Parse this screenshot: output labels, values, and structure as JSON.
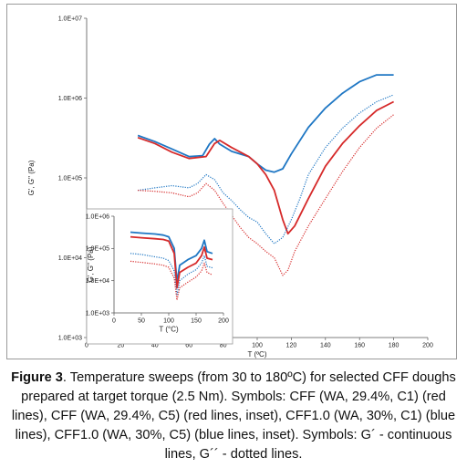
{
  "chart_data": [
    {
      "id": "main",
      "type": "line",
      "y_scale": "log",
      "xlabel": "T (ºC)",
      "ylabel": "G', G'' (Pa)",
      "xlim": [
        0,
        200
      ],
      "ylim": [
        1000,
        10000000
      ],
      "x_ticks": [
        "0",
        "20",
        "40",
        "60",
        "80",
        "100",
        "120",
        "140",
        "160",
        "180",
        "200"
      ],
      "y_ticks": [
        "1.0E+03",
        "1.0E+04",
        "1.0E+05",
        "1.0E+06",
        "1.0E+07"
      ],
      "grid": false,
      "series": [
        {
          "color": "#1f77c4",
          "style": "solid",
          "points": [
            [
              30,
              340000
            ],
            [
              40,
              285000
            ],
            [
              50,
              230000
            ],
            [
              60,
              185000
            ],
            [
              68,
              190000
            ],
            [
              72,
              265000
            ],
            [
              75,
              310000
            ],
            [
              78,
              265000
            ],
            [
              85,
              215000
            ],
            [
              95,
              185000
            ],
            [
              100,
              150000
            ],
            [
              105,
              125000
            ],
            [
              110,
              118000
            ],
            [
              115,
              130000
            ],
            [
              120,
              200000
            ],
            [
              130,
              430000
            ],
            [
              140,
              750000
            ],
            [
              150,
              1150000
            ],
            [
              160,
              1600000
            ],
            [
              170,
              1950000
            ],
            [
              180,
              1950000
            ]
          ]
        },
        {
          "color": "#d62a2a",
          "style": "solid",
          "points": [
            [
              30,
              320000
            ],
            [
              40,
              270000
            ],
            [
              50,
              210000
            ],
            [
              60,
              175000
            ],
            [
              70,
              185000
            ],
            [
              75,
              270000
            ],
            [
              78,
              295000
            ],
            [
              85,
              240000
            ],
            [
              95,
              185000
            ],
            [
              100,
              150000
            ],
            [
              105,
              110000
            ],
            [
              110,
              70000
            ],
            [
              115,
              30000
            ],
            [
              118,
              20000
            ],
            [
              122,
              25000
            ],
            [
              130,
              55000
            ],
            [
              140,
              140000
            ],
            [
              150,
              270000
            ],
            [
              160,
              450000
            ],
            [
              170,
              700000
            ],
            [
              180,
              900000
            ]
          ]
        },
        {
          "color": "#1f77c4",
          "style": "dotted",
          "points": [
            [
              30,
              70000
            ],
            [
              40,
              75000
            ],
            [
              50,
              80000
            ],
            [
              60,
              75000
            ],
            [
              65,
              85000
            ],
            [
              70,
              110000
            ],
            [
              75,
              95000
            ],
            [
              80,
              65000
            ],
            [
              85,
              52000
            ],
            [
              90,
              40000
            ],
            [
              95,
              32000
            ],
            [
              100,
              28000
            ],
            [
              105,
              20000
            ],
            [
              110,
              15000
            ],
            [
              115,
              18000
            ],
            [
              120,
              30000
            ],
            [
              125,
              55000
            ],
            [
              130,
              110000
            ],
            [
              140,
              240000
            ],
            [
              150,
              420000
            ],
            [
              160,
              650000
            ],
            [
              170,
              900000
            ],
            [
              180,
              1100000
            ]
          ]
        },
        {
          "color": "#d62a2a",
          "style": "dotted",
          "points": [
            [
              30,
              70000
            ],
            [
              40,
              68000
            ],
            [
              50,
              65000
            ],
            [
              60,
              58000
            ],
            [
              65,
              65000
            ],
            [
              70,
              85000
            ],
            [
              75,
              70000
            ],
            [
              80,
              48000
            ],
            [
              85,
              34000
            ],
            [
              90,
              24000
            ],
            [
              95,
              18000
            ],
            [
              100,
              15000
            ],
            [
              105,
              12000
            ],
            [
              110,
              10000
            ],
            [
              115,
              6000
            ],
            [
              118,
              7000
            ],
            [
              122,
              12000
            ],
            [
              130,
              25000
            ],
            [
              140,
              55000
            ],
            [
              150,
              120000
            ],
            [
              160,
              240000
            ],
            [
              170,
              420000
            ],
            [
              180,
              620000
            ]
          ]
        }
      ]
    },
    {
      "id": "inset",
      "type": "line",
      "y_scale": "log",
      "xlabel": "T (°C)",
      "ylabel": "G', G'' (Pa)",
      "xlim": [
        0,
        200
      ],
      "ylim": [
        1000,
        1000000
      ],
      "x_ticks": [
        "0",
        "50",
        "100",
        "150",
        "200"
      ],
      "y_ticks": [
        "1.0E+03",
        "1.0E+04",
        "1.0E+05",
        "1.0E+06"
      ],
      "grid": false,
      "series": [
        {
          "color": "#1f77c4",
          "style": "solid",
          "points": [
            [
              30,
              320000
            ],
            [
              50,
              300000
            ],
            [
              75,
              280000
            ],
            [
              90,
              260000
            ],
            [
              100,
              230000
            ],
            [
              110,
              100000
            ],
            [
              115,
              9000
            ],
            [
              120,
              30000
            ],
            [
              135,
              45000
            ],
            [
              150,
              60000
            ],
            [
              160,
              100000
            ],
            [
              165,
              180000
            ],
            [
              170,
              80000
            ],
            [
              180,
              70000
            ]
          ]
        },
        {
          "color": "#d62a2a",
          "style": "solid",
          "points": [
            [
              30,
              230000
            ],
            [
              50,
              215000
            ],
            [
              75,
              200000
            ],
            [
              90,
              190000
            ],
            [
              100,
              170000
            ],
            [
              110,
              70000
            ],
            [
              115,
              6000
            ],
            [
              120,
              18000
            ],
            [
              135,
              26000
            ],
            [
              150,
              35000
            ],
            [
              160,
              60000
            ],
            [
              165,
              110000
            ],
            [
              170,
              50000
            ],
            [
              180,
              45000
            ]
          ]
        },
        {
          "color": "#1f77c4",
          "style": "dotted",
          "points": [
            [
              30,
              70000
            ],
            [
              50,
              65000
            ],
            [
              75,
              55000
            ],
            [
              90,
              50000
            ],
            [
              100,
              42000
            ],
            [
              110,
              20000
            ],
            [
              115,
              3500
            ],
            [
              120,
              10000
            ],
            [
              135,
              16000
            ],
            [
              150,
              22000
            ],
            [
              160,
              35000
            ],
            [
              165,
              60000
            ],
            [
              170,
              28000
            ],
            [
              180,
              25000
            ]
          ]
        },
        {
          "color": "#d62a2a",
          "style": "dotted",
          "points": [
            [
              30,
              40000
            ],
            [
              50,
              37000
            ],
            [
              75,
              33000
            ],
            [
              90,
              30000
            ],
            [
              100,
              26000
            ],
            [
              110,
              12000
            ],
            [
              115,
              2500
            ],
            [
              120,
              6000
            ],
            [
              135,
              9000
            ],
            [
              150,
              13000
            ],
            [
              160,
              20000
            ],
            [
              165,
              35000
            ],
            [
              170,
              18000
            ],
            [
              180,
              15000
            ]
          ]
        }
      ]
    }
  ],
  "caption": {
    "label": "Figure 3",
    "text": ". Temperature sweeps (from 30 to 180ºC) for selected CFF doughs prepared at target torque (2.5 Nm). Symbols: CFF (WA, 29.4%, C1) (red lines), CFF (WA, 29.4%, C5) (red lines, inset), CFF1.0 (WA, 30%, C1) (blue lines), CFF1.0 (WA, 30%, C5) (blue lines, inset). Symbols: G´ - continuous lines, G´´ - dotted lines."
  }
}
